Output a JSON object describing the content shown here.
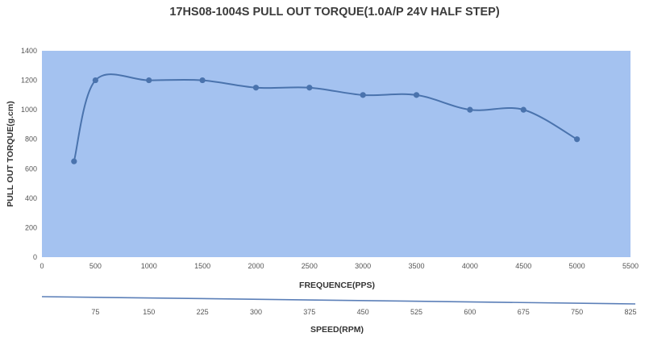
{
  "chart_data": {
    "type": "line",
    "title": "17HS08-1004S PULL OUT TORQUE(1.0A/P 24V HALF STEP)",
    "xlabel": "FREQUENCE(PPS)",
    "ylabel": "PULL OUT TORQUE(g.cm)",
    "x2label": "SPEED(RPM)",
    "xlim": [
      0,
      5500
    ],
    "ylim": [
      0,
      1400
    ],
    "xticks": [
      0,
      500,
      1000,
      1500,
      2000,
      2500,
      3000,
      3500,
      4000,
      4500,
      5000,
      5500
    ],
    "yticks": [
      0,
      200,
      400,
      600,
      800,
      1000,
      1200,
      1400
    ],
    "x2ticks": [
      "75",
      "150",
      "225",
      "300",
      "375",
      "450",
      "525",
      "600",
      "675",
      "750",
      "825"
    ],
    "series": [
      {
        "x": [
          300,
          500,
          1000,
          1500,
          2000,
          2500,
          3000,
          3500,
          4000,
          4500,
          5000
        ],
        "y": [
          650,
          1200,
          1200,
          1200,
          1150,
          1150,
          1100,
          1100,
          1000,
          1000,
          800
        ]
      }
    ],
    "grid": false,
    "colors": {
      "plot_bg": "#a4c2f0",
      "line": "#4a73ad",
      "marker": "#4a73ad"
    }
  }
}
